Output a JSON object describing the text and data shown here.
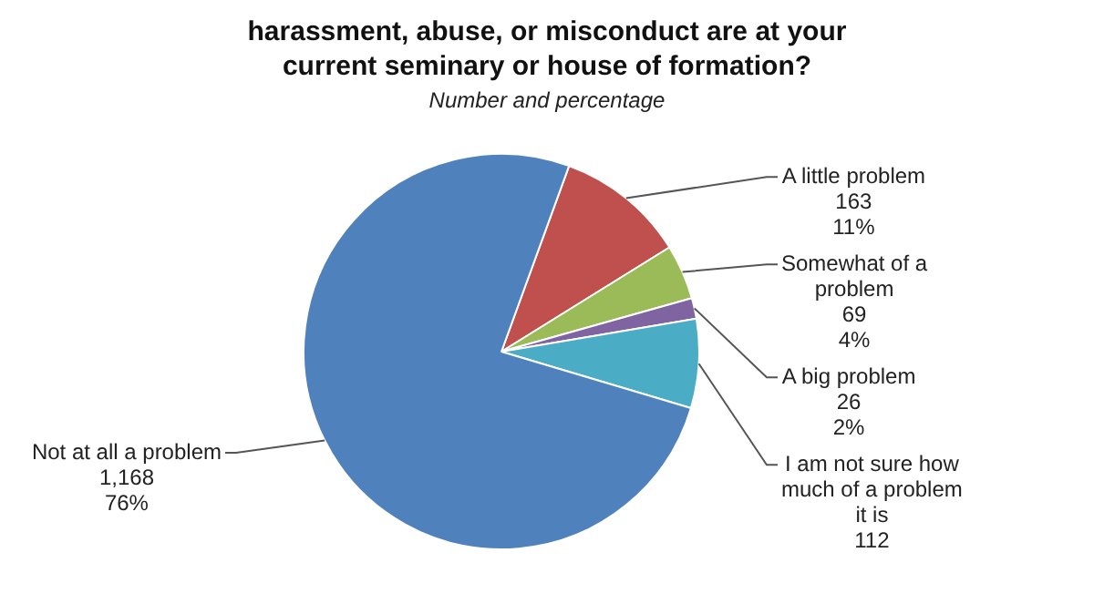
{
  "chart_data": {
    "type": "pie",
    "title": "harassment, abuse, or misconduct are at your current seminary or house of formation?",
    "subtitle": "Number and percentage",
    "categories": [
      "A little problem",
      "Somewhat of a problem",
      "A big problem",
      "I am not sure how much of a problem it is",
      "Not at all a problem"
    ],
    "values": [
      163,
      69,
      26,
      112,
      1168
    ],
    "colors": [
      "#c0504d",
      "#9bbb59",
      "#8064a2",
      "#4bacc6",
      "#4f81bd"
    ],
    "value_labels": [
      "163\n11%",
      "69\n4%",
      "26\n2%",
      "112",
      "1,168\n76%"
    ]
  }
}
